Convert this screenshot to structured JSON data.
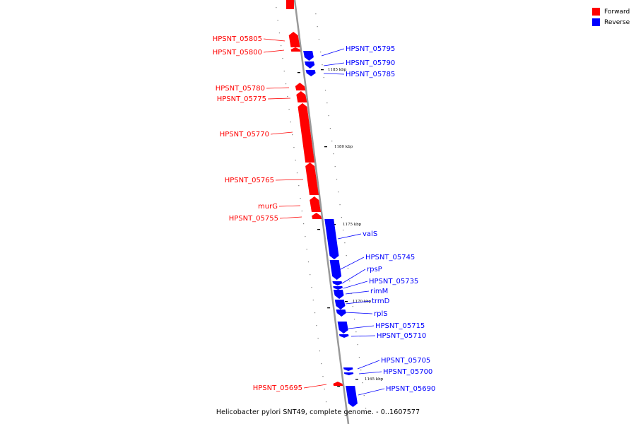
{
  "title": "Helicobacter pylori SNT49, complete genome. - 0..1607577",
  "legend": [
    {
      "label": "Forward",
      "color": "#ff0000"
    },
    {
      "label": "Reverse",
      "color": "#0000ff"
    }
  ],
  "colors": {
    "forward": "#ff0000",
    "reverse": "#0000ff",
    "backbone": "#999999"
  },
  "tick_labels": [
    "1185 kbp",
    "1180 kbp",
    "1175 kbp",
    "1170 kbp",
    "1165 kbp"
  ],
  "genes": [
    {
      "name": "HPSNT_05805",
      "strand": "forward"
    },
    {
      "name": "HPSNT_05800",
      "strand": "forward"
    },
    {
      "name": "HPSNT_05795",
      "strand": "reverse"
    },
    {
      "name": "HPSNT_05790",
      "strand": "reverse"
    },
    {
      "name": "HPSNT_05785",
      "strand": "reverse"
    },
    {
      "name": "HPSNT_05780",
      "strand": "forward"
    },
    {
      "name": "HPSNT_05775",
      "strand": "forward"
    },
    {
      "name": "HPSNT_05770",
      "strand": "forward"
    },
    {
      "name": "HPSNT_05765",
      "strand": "forward"
    },
    {
      "name": "murG",
      "strand": "forward"
    },
    {
      "name": "HPSNT_05755",
      "strand": "forward"
    },
    {
      "name": "valS",
      "strand": "reverse"
    },
    {
      "name": "HPSNT_05745",
      "strand": "reverse"
    },
    {
      "name": "rpsP",
      "strand": "reverse"
    },
    {
      "name": "HPSNT_05735",
      "strand": "reverse"
    },
    {
      "name": "rimM",
      "strand": "reverse"
    },
    {
      "name": "trmD",
      "strand": "reverse"
    },
    {
      "name": "rplS",
      "strand": "reverse"
    },
    {
      "name": "HPSNT_05715",
      "strand": "reverse"
    },
    {
      "name": "HPSNT_05710",
      "strand": "reverse"
    },
    {
      "name": "HPSNT_05705",
      "strand": "reverse"
    },
    {
      "name": "HPSNT_05700",
      "strand": "reverse"
    },
    {
      "name": "HPSNT_05695",
      "strand": "forward"
    },
    {
      "name": "HPSNT_05690",
      "strand": "reverse"
    }
  ]
}
